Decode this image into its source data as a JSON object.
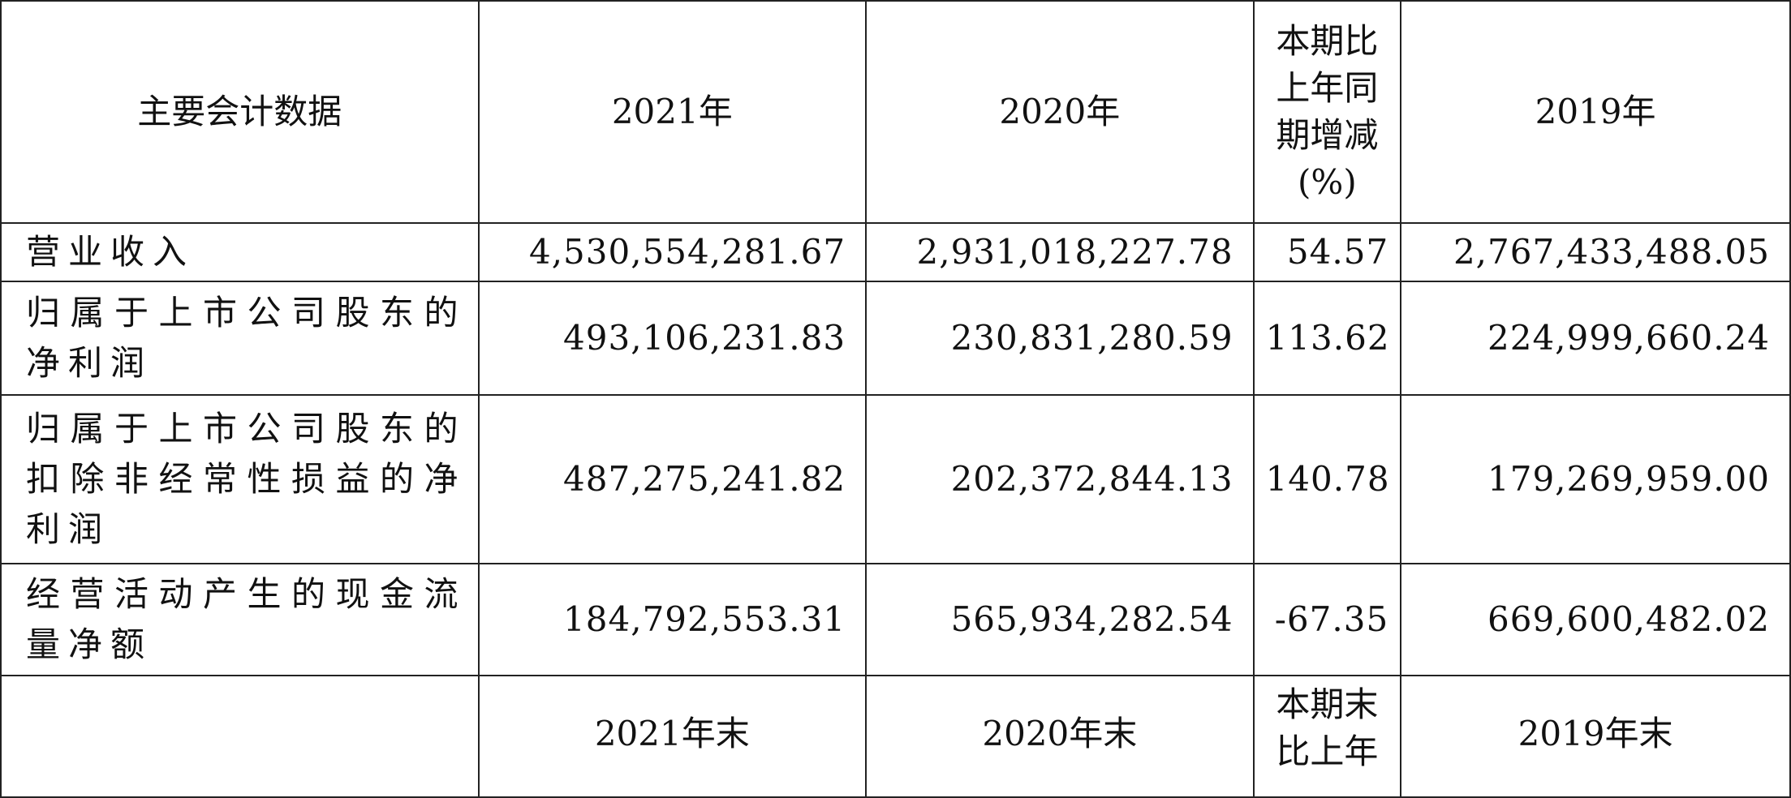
{
  "header": {
    "label": "主要会计数据",
    "col_2021": "2021年",
    "col_2020": "2020年",
    "col_change_lines": [
      "本期比",
      "上年同",
      "期增减",
      "(%)"
    ],
    "col_2019": "2019年"
  },
  "rows": [
    {
      "label": "营业收入",
      "v2021": "4,530,554,281.67",
      "v2020": "2,931,018,227.78",
      "change": "54.57",
      "v2019": "2,767,433,488.05"
    },
    {
      "label": "归属于上市公司股东的净利润",
      "v2021": "493,106,231.83",
      "v2020": "230,831,280.59",
      "change": "113.62",
      "v2019": "224,999,660.24"
    },
    {
      "label": "归属于上市公司股东的扣除非经常性损益的净利润",
      "v2021": "487,275,241.82",
      "v2020": "202,372,844.13",
      "change": "140.78",
      "v2019": "179,269,959.00"
    },
    {
      "label": "经营活动产生的现金流量净额",
      "v2021": "184,792,553.31",
      "v2020": "565,934,282.54",
      "change": "-67.35",
      "v2019": "669,600,482.02"
    }
  ],
  "footer_header": {
    "label": "",
    "col_2021": "2021年末",
    "col_2020": "2020年末",
    "col_change_lines": [
      "本期末",
      "比上年"
    ],
    "col_2019": "2019年末"
  }
}
